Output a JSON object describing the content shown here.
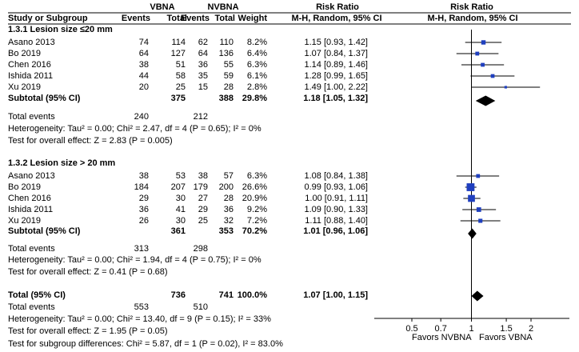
{
  "header": {
    "group1": "VBNA",
    "group2": "NVBNA",
    "ratio_title_left": "Risk Ratio",
    "ratio_title_right": "Risk Ratio",
    "col_study": "Study or Subgroup",
    "col_events1": "Events",
    "col_total1": "Total",
    "col_events2": "Events",
    "col_total2": "Total",
    "col_weight": "Weight",
    "col_method_left": "M-H, Random, 95% CI",
    "col_method_right": "M-H, Random, 95% CI"
  },
  "subgroups": [
    {
      "title": "1.3.1 Lesion size ≤20 mm",
      "studies": [
        {
          "name": "Asano 2013",
          "e1": "74",
          "t1": "114",
          "e2": "62",
          "t2": "110",
          "weight": "8.2%",
          "ci": "1.15 [0.93, 1.42]"
        },
        {
          "name": "Bo 2019",
          "e1": "64",
          "t1": "127",
          "e2": "64",
          "t2": "136",
          "weight": "6.4%",
          "ci": "1.07 [0.84, 1.37]"
        },
        {
          "name": "Chen 2016",
          "e1": "38",
          "t1": "51",
          "e2": "36",
          "t2": "55",
          "weight": "6.3%",
          "ci": "1.14 [0.89, 1.46]"
        },
        {
          "name": "Ishida 2011",
          "e1": "44",
          "t1": "58",
          "e2": "35",
          "t2": "59",
          "weight": "6.1%",
          "ci": "1.28 [0.99, 1.65]"
        },
        {
          "name": "Xu 2019",
          "e1": "20",
          "t1": "25",
          "e2": "15",
          "t2": "28",
          "weight": "2.8%",
          "ci": "1.49 [1.00, 2.22]"
        }
      ],
      "subtotal": {
        "label": "Subtotal (95% CI)",
        "t1": "375",
        "t2": "388",
        "weight": "29.8%",
        "ci": "1.18 [1.05, 1.32]"
      },
      "total_events": {
        "label": "Total events",
        "e1": "240",
        "e2": "212"
      },
      "heterogeneity": "Heterogeneity: Tau² = 0.00; Chi² = 2.47, df = 4 (P = 0.65); I² = 0%",
      "overall_effect": "Test for overall effect: Z = 2.83 (P = 0.005)"
    },
    {
      "title": "1.3.2 Lesion size > 20 mm",
      "studies": [
        {
          "name": "Asano 2013",
          "e1": "38",
          "t1": "53",
          "e2": "38",
          "t2": "57",
          "weight": "6.3%",
          "ci": "1.08 [0.84, 1.38]"
        },
        {
          "name": "Bo 2019",
          "e1": "184",
          "t1": "207",
          "e2": "179",
          "t2": "200",
          "weight": "26.6%",
          "ci": "0.99 [0.93, 1.06]"
        },
        {
          "name": "Chen 2016",
          "e1": "29",
          "t1": "30",
          "e2": "27",
          "t2": "28",
          "weight": "20.9%",
          "ci": "1.00 [0.91, 1.11]"
        },
        {
          "name": "Ishida 2011",
          "e1": "36",
          "t1": "41",
          "e2": "29",
          "t2": "36",
          "weight": "9.2%",
          "ci": "1.09 [0.90, 1.33]"
        },
        {
          "name": "Xu 2019",
          "e1": "26",
          "t1": "30",
          "e2": "25",
          "t2": "32",
          "weight": "7.2%",
          "ci": "1.11 [0.88, 1.40]"
        }
      ],
      "subtotal": {
        "label": "Subtotal (95% CI)",
        "t1": "361",
        "t2": "353",
        "weight": "70.2%",
        "ci": "1.01 [0.96, 1.06]"
      },
      "total_events": {
        "label": "Total events",
        "e1": "313",
        "e2": "298"
      },
      "heterogeneity": "Heterogeneity: Tau² = 0.00; Chi² = 1.94, df = 4 (P = 0.75); I² = 0%",
      "overall_effect": "Test for overall effect: Z = 0.41 (P = 0.68)"
    }
  ],
  "total": {
    "label": "Total (95% CI)",
    "t1": "736",
    "t2": "741",
    "weight": "100.0%",
    "ci": "1.07 [1.00, 1.15]",
    "events_label": "Total events",
    "e1": "553",
    "e2": "510",
    "heterogeneity": "Heterogeneity: Tau² = 0.00; Chi² = 13.40, df = 9 (P = 0.15); I² = 33%",
    "overall_effect": "Test for overall effect: Z = 1.95 (P = 0.05)",
    "subgroup_diff": "Test for subgroup differences: Chi² = 5.87, df = 1 (P = 0.02), I² = 83.0%"
  },
  "axis": {
    "favors_left": "Favors NVBNA",
    "favors_right": "Favors VBNA"
  },
  "chart_data": {
    "type": "forest",
    "scale": "log",
    "xlim": [
      0.5,
      2
    ],
    "xticks": [
      0.5,
      0.7,
      1,
      1.5,
      2
    ],
    "xtick_labels": [
      "0.5",
      "0.7",
      "1",
      "1.5",
      "2"
    ],
    "null_line": 1,
    "study_color": "#1f3fbf",
    "studies": [
      {
        "group": 0,
        "rr": 1.15,
        "lo": 0.93,
        "hi": 1.42,
        "w": 8.2
      },
      {
        "group": 0,
        "rr": 1.07,
        "lo": 0.84,
        "hi": 1.37,
        "w": 6.4
      },
      {
        "group": 0,
        "rr": 1.14,
        "lo": 0.89,
        "hi": 1.46,
        "w": 6.3
      },
      {
        "group": 0,
        "rr": 1.28,
        "lo": 0.99,
        "hi": 1.65,
        "w": 6.1
      },
      {
        "group": 0,
        "rr": 1.49,
        "lo": 1.0,
        "hi": 2.22,
        "w": 2.8
      },
      {
        "group": 1,
        "rr": 1.08,
        "lo": 0.84,
        "hi": 1.38,
        "w": 6.3
      },
      {
        "group": 1,
        "rr": 0.99,
        "lo": 0.93,
        "hi": 1.06,
        "w": 26.6
      },
      {
        "group": 1,
        "rr": 1.0,
        "lo": 0.91,
        "hi": 1.11,
        "w": 20.9
      },
      {
        "group": 1,
        "rr": 1.09,
        "lo": 0.9,
        "hi": 1.33,
        "w": 9.2
      },
      {
        "group": 1,
        "rr": 1.11,
        "lo": 0.88,
        "hi": 1.4,
        "w": 7.2
      }
    ],
    "diamonds": [
      {
        "kind": "subtotal",
        "rr": 1.18,
        "lo": 1.05,
        "hi": 1.32
      },
      {
        "kind": "subtotal",
        "rr": 1.01,
        "lo": 0.96,
        "hi": 1.06
      },
      {
        "kind": "total",
        "rr": 1.07,
        "lo": 1.0,
        "hi": 1.15
      }
    ]
  }
}
